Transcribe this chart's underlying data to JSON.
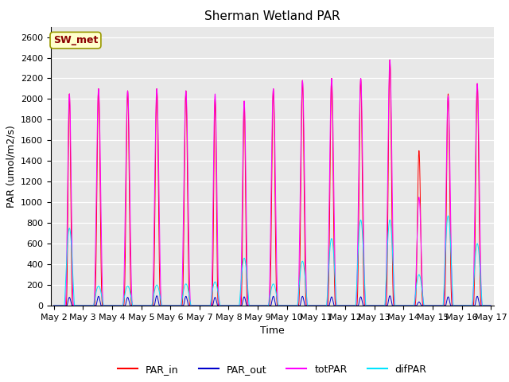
{
  "title": "Sherman Wetland PAR",
  "xlabel": "Time",
  "ylabel": "PAR (umol/m2/s)",
  "ylim": [
    0,
    2700
  ],
  "yticks": [
    0,
    200,
    400,
    600,
    800,
    1000,
    1200,
    1400,
    1600,
    1800,
    2000,
    2200,
    2400,
    2600
  ],
  "start_day": 2,
  "end_day": 17,
  "n_days": 15,
  "points_per_day": 288,
  "annotation_text": "SW_met",
  "legend_labels": [
    "PAR_in",
    "PAR_out",
    "totPAR",
    "difPAR"
  ],
  "line_colors": [
    "#ff0000",
    "#0000cc",
    "#ff00ff",
    "#00e5ff"
  ],
  "fig_facecolor": "#ffffff",
  "axes_facecolor": "#e8e8e8",
  "title_fontsize": 11,
  "axis_fontsize": 9,
  "tick_fontsize": 8,
  "legend_fontsize": 9,
  "day_peaks_PAR_in": [
    2050,
    2100,
    2080,
    2100,
    2080,
    2000,
    1980,
    2100,
    2180,
    2200,
    2200,
    2380,
    1500,
    2050,
    2150
  ],
  "day_peaks_PAR_out": [
    80,
    90,
    80,
    95,
    90,
    80,
    85,
    90,
    90,
    85,
    85,
    95,
    35,
    85,
    90
  ],
  "day_peaks_totPAR": [
    2050,
    2100,
    2080,
    2100,
    2080,
    2050,
    1980,
    2100,
    2180,
    2200,
    2200,
    2380,
    1050,
    2030,
    2150
  ],
  "day_peaks_difPAR": [
    750,
    190,
    190,
    200,
    210,
    230,
    460,
    210,
    430,
    650,
    830,
    830,
    300,
    870,
    600
  ],
  "day_width_PAR_in": [
    0.25,
    0.3,
    0.3,
    0.3,
    0.3,
    0.25,
    0.25,
    0.3,
    0.3,
    0.3,
    0.3,
    0.3,
    0.3,
    0.3,
    0.3
  ],
  "day_width_totPAR": [
    0.3,
    0.35,
    0.35,
    0.35,
    0.35,
    0.3,
    0.3,
    0.35,
    0.35,
    0.35,
    0.35,
    0.35,
    0.35,
    0.35,
    0.35
  ],
  "day_width_difPAR": [
    0.35,
    0.35,
    0.35,
    0.35,
    0.35,
    0.35,
    0.35,
    0.35,
    0.35,
    0.35,
    0.35,
    0.35,
    0.35,
    0.35,
    0.35
  ]
}
